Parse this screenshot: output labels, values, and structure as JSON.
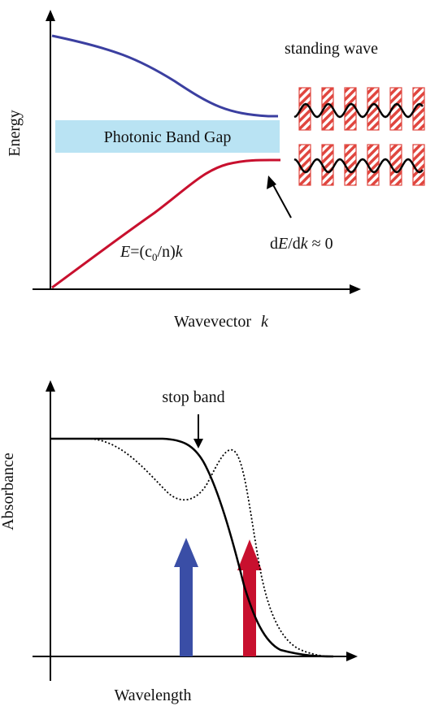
{
  "top_panel": {
    "y_axis_label": "Energy",
    "x_axis_label": "Wavevector",
    "x_axis_symbol": "k",
    "band_gap_label": "Photonic Band Gap",
    "standing_wave_label": "standing wave",
    "dispersion_label": {
      "prefix": "E",
      "middle": "=(c",
      "subscript": "0",
      "suffix": "/n)",
      "var": "k"
    },
    "group_velocity_label": {
      "d1": "d",
      "E": "E",
      "slash": "/d",
      "k": "k",
      "approx": " ≈ 0"
    },
    "colors": {
      "upper_band": "#3b3fa0",
      "lower_band": "#c8102e",
      "band_gap_fill": "#b9e3f3",
      "stripe": "#e0463f"
    }
  },
  "bottom_panel": {
    "y_axis_label": "Absorbance",
    "x_axis_label": "Wavelength",
    "stop_band_label": "stop band",
    "colors": {
      "blue_arrow": "#3a4ea6",
      "red_arrow": "#c8102e"
    }
  }
}
